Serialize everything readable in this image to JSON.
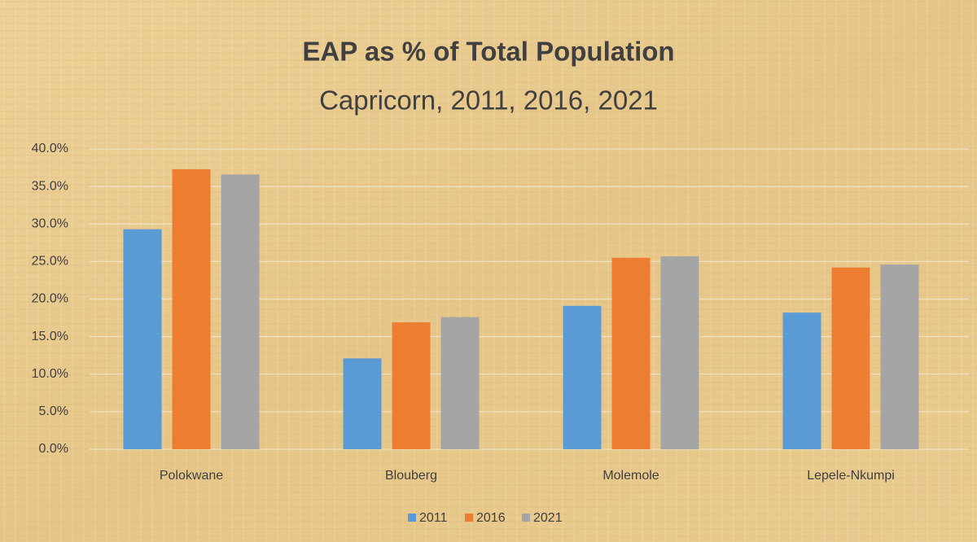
{
  "chart_data": {
    "type": "bar",
    "title": "EAP as % of Total Population",
    "subtitle": "Capricorn, 2011, 2016, 2021",
    "categories": [
      "Polokwane",
      "Blouberg",
      "Molemole",
      "Lepele-Nkumpi"
    ],
    "series": [
      {
        "name": "2011",
        "color": "#5b9bd5",
        "values": [
          29.3,
          12.1,
          19.1,
          18.2
        ]
      },
      {
        "name": "2016",
        "color": "#ed7d31",
        "values": [
          37.3,
          16.9,
          25.5,
          24.2
        ]
      },
      {
        "name": "2021",
        "color": "#a5a5a5",
        "values": [
          36.6,
          17.6,
          25.7,
          24.6
        ]
      }
    ],
    "ylim": [
      0,
      40
    ],
    "yticks": [
      {
        "value": 0,
        "label": "0.0%"
      },
      {
        "value": 5,
        "label": "5.0%"
      },
      {
        "value": 10,
        "label": "10.0%"
      },
      {
        "value": 15,
        "label": "15.0%"
      },
      {
        "value": 20,
        "label": "20.0%"
      },
      {
        "value": 25,
        "label": "25.0%"
      },
      {
        "value": 30,
        "label": "30.0%"
      },
      {
        "value": 35,
        "label": "35.0%"
      },
      {
        "value": 40,
        "label": "40.0%"
      }
    ],
    "grid": true,
    "legend": "bottom"
  }
}
